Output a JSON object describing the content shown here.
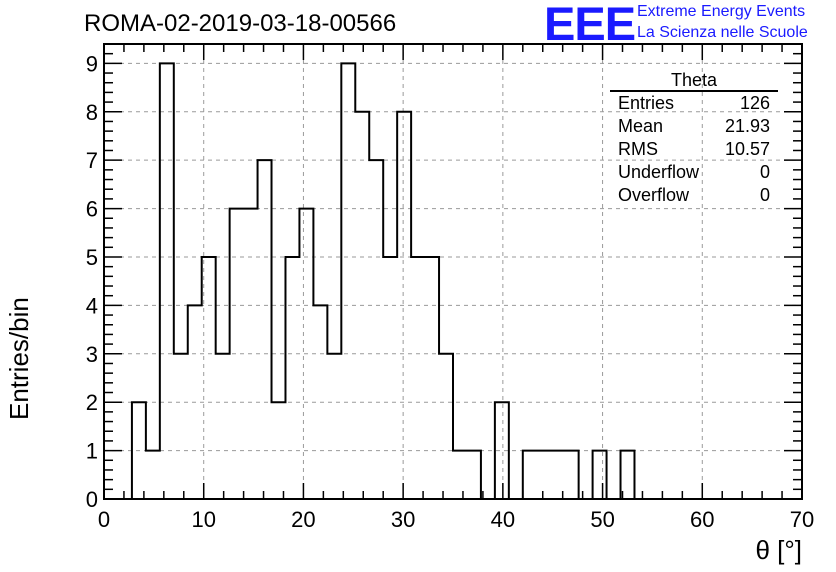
{
  "title": "ROMA-02-2019-03-18-00566",
  "logo": {
    "mark": "EEE",
    "line1": "Extreme Energy Events",
    "line2": "La Scienza nelle Scuole",
    "color": "#1a1aff"
  },
  "stats": {
    "title": "Theta",
    "rows": [
      {
        "label": "Entries",
        "value": "126"
      },
      {
        "label": "Mean",
        "value": "21.93"
      },
      {
        "label": "RMS",
        "value": "10.57"
      },
      {
        "label": "Underflow",
        "value": "0"
      },
      {
        "label": "Overflow",
        "value": "0"
      }
    ]
  },
  "chart_data": {
    "type": "bar",
    "style": "step-histogram",
    "xlabel": "θ [°]",
    "ylabel": "Entries/bin",
    "xlim": [
      0,
      70
    ],
    "ylim": [
      0,
      9.4
    ],
    "xticks": [
      0,
      10,
      20,
      30,
      40,
      50,
      60,
      70
    ],
    "yticks": [
      0,
      1,
      2,
      3,
      4,
      5,
      6,
      7,
      8,
      9
    ],
    "grid": true,
    "bin_width": 1.4,
    "bin_start": 2.8,
    "values": [
      2,
      1,
      9,
      3,
      4,
      5,
      3,
      6,
      6,
      7,
      2,
      5,
      6,
      4,
      3,
      9,
      8,
      7,
      5,
      8,
      5,
      5,
      3,
      1,
      1,
      0,
      2,
      0,
      1,
      1,
      1,
      1,
      0,
      1,
      0,
      1,
      0
    ]
  }
}
